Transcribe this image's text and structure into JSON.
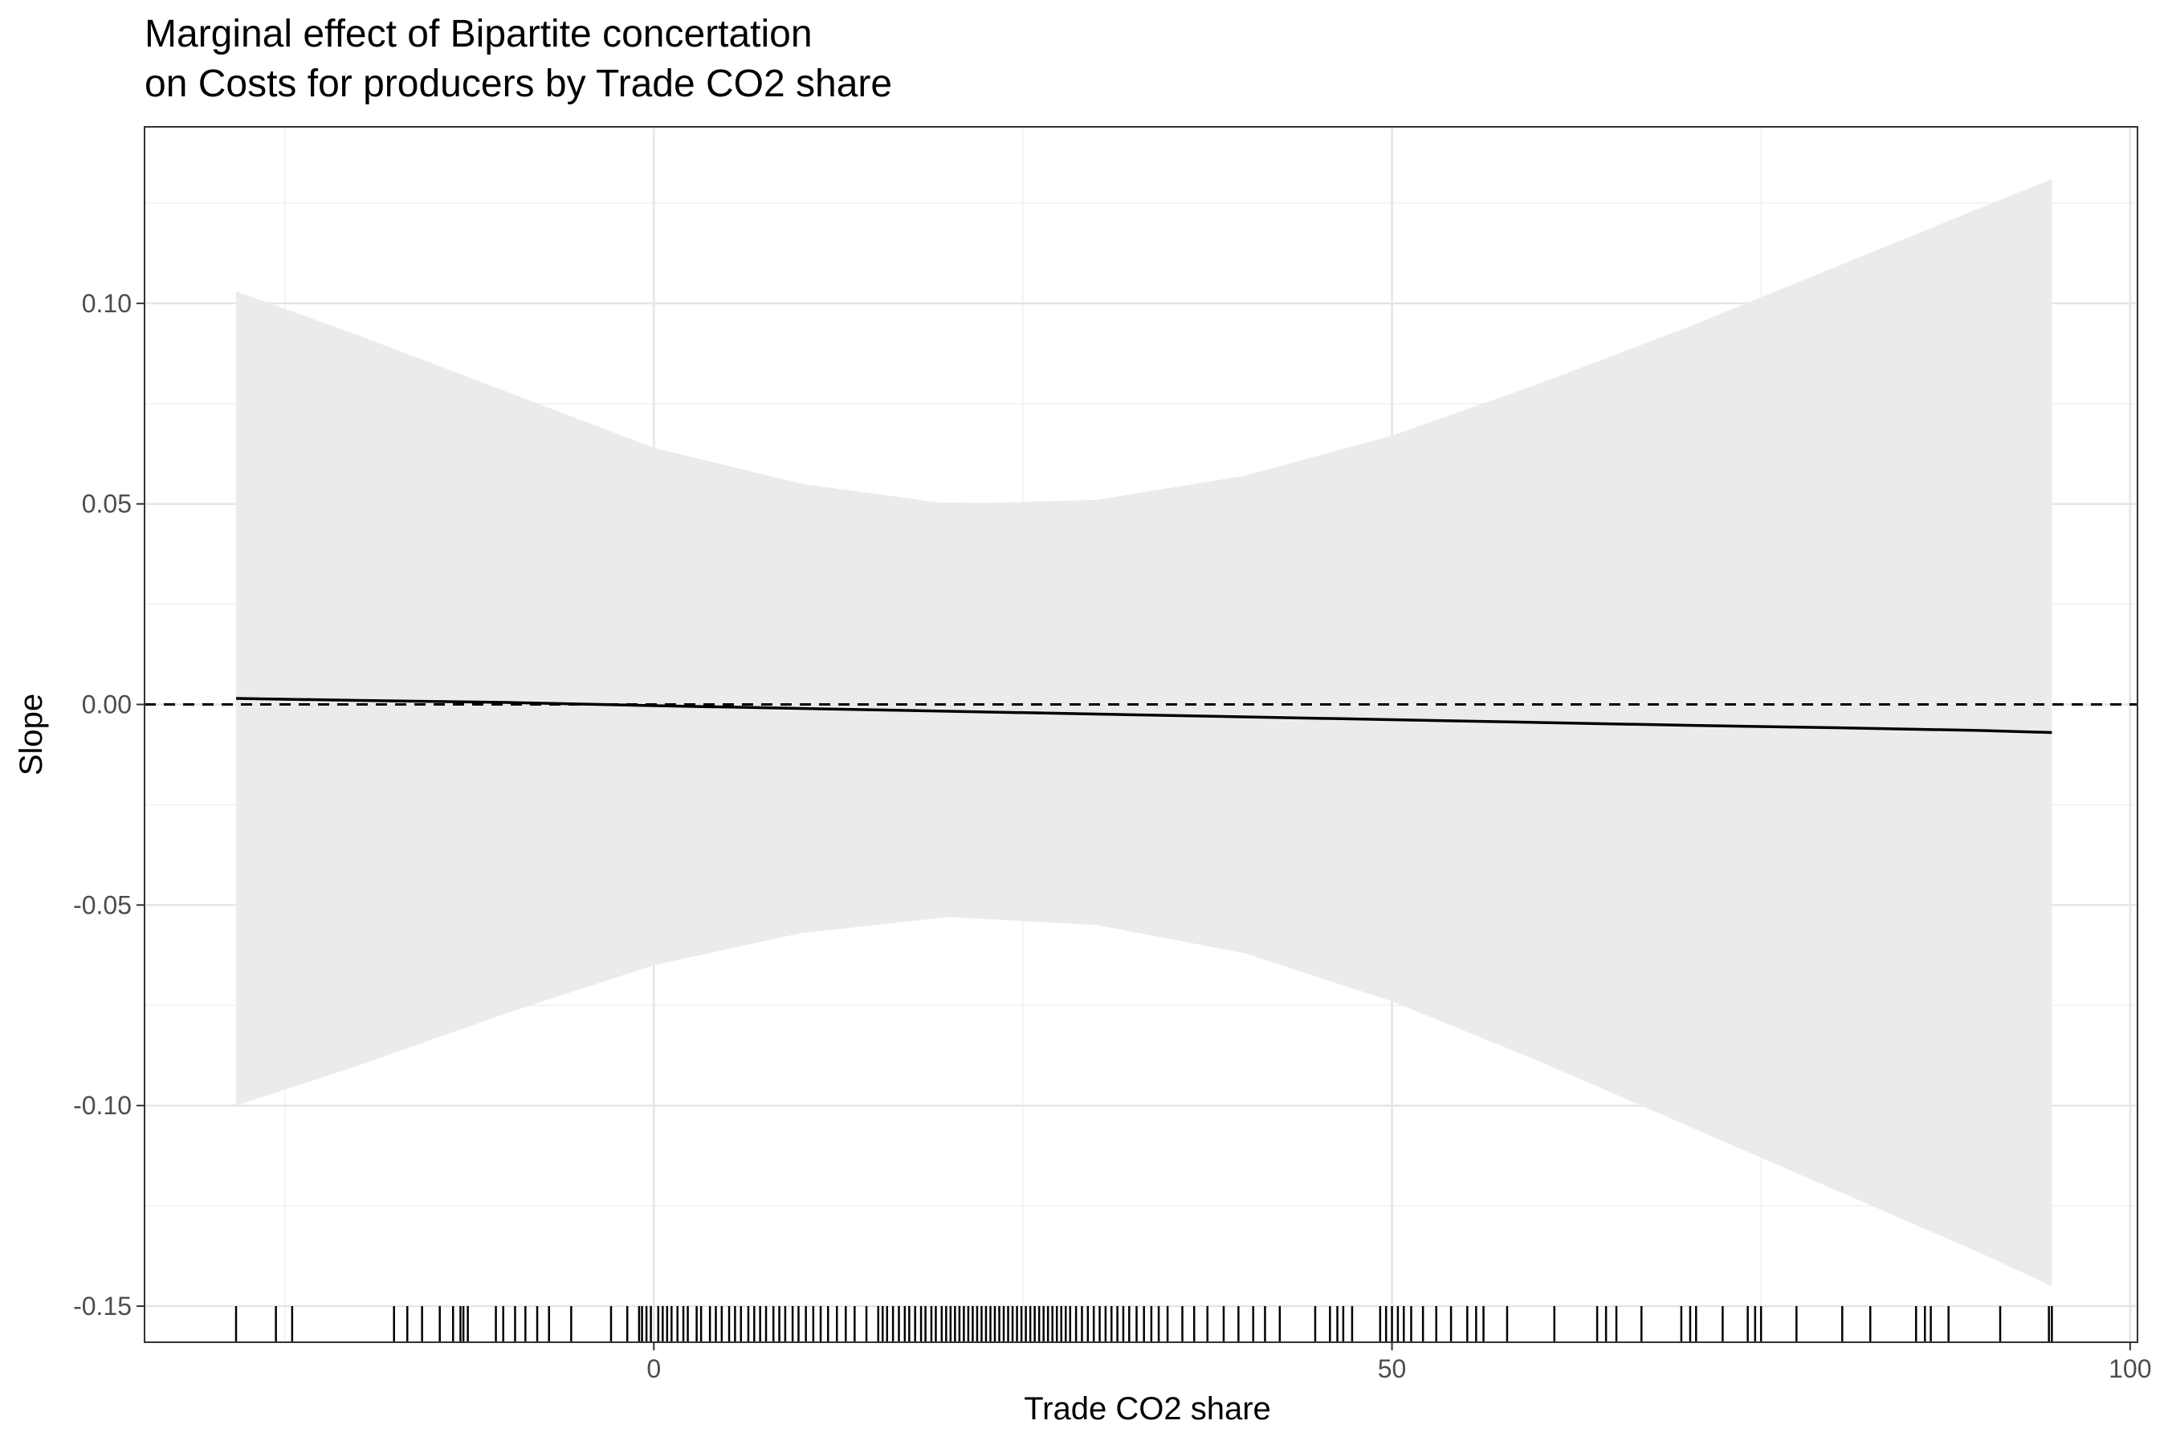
{
  "chart_data": {
    "type": "line",
    "title": [
      "Marginal effect of Bipartite concertation",
      "on Costs for producers by Trade CO2 share"
    ],
    "xlabel": "Trade CO2 share",
    "ylabel": "Slope",
    "xlim": [
      -34.5,
      100.5
    ],
    "ylim": [
      -0.159,
      0.144
    ],
    "x_ticks": [
      0,
      50,
      100
    ],
    "x_tick_labels": [
      "0",
      "50",
      "100"
    ],
    "y_ticks": [
      -0.15,
      -0.1,
      -0.05,
      0.0,
      0.05,
      0.1
    ],
    "y_tick_labels": [
      "-0.15",
      "-0.10",
      "-0.05",
      "0.00",
      "0.05",
      "0.10"
    ],
    "grid": true,
    "reference_line": {
      "y": 0,
      "style": "dashed"
    },
    "series": [
      {
        "kind": "line",
        "x": [
          -28.3,
          -20,
          -10,
          0,
          10,
          20,
          30,
          40,
          50,
          60,
          70,
          80,
          90,
          94.7
        ],
        "y": [
          0.0015,
          0.001,
          0.0005,
          -0.0003,
          -0.001,
          -0.0017,
          -0.0024,
          -0.0031,
          -0.0038,
          -0.0045,
          -0.0052,
          -0.0058,
          -0.0065,
          -0.007
        ]
      },
      {
        "kind": "ribbon",
        "x": [
          -28.3,
          -20,
          -10,
          0,
          10,
          20,
          30,
          40,
          50,
          60,
          70,
          80,
          90,
          94.7
        ],
        "lower": [
          -0.1,
          -0.09,
          -0.077,
          -0.065,
          -0.057,
          -0.053,
          -0.055,
          -0.062,
          -0.074,
          -0.089,
          -0.105,
          -0.121,
          -0.137,
          -0.145
        ],
        "upper": [
          0.103,
          0.092,
          0.078,
          0.064,
          0.055,
          0.05,
          0.051,
          0.057,
          0.067,
          0.08,
          0.094,
          0.109,
          0.124,
          0.131
        ]
      }
    ],
    "rug_x": [
      -28.3,
      -25.6,
      -24.5,
      -17.6,
      -16.7,
      -15.7,
      -14.5,
      -13.6,
      -13.1,
      -12.9,
      -12.6,
      -10.7,
      -10.2,
      -9.4,
      -8.7,
      -7.9,
      -7.1,
      -5.6,
      -2.9,
      -1.8,
      -1.0,
      -0.8,
      -0.5,
      -0.2,
      0.3,
      0.6,
      0.9,
      1.2,
      1.6,
      2.0,
      2.3,
      2.9,
      3.2,
      3.8,
      4.2,
      4.6,
      5.1,
      5.5,
      5.9,
      6.4,
      6.8,
      7.2,
      7.6,
      8.1,
      8.5,
      8.9,
      9.4,
      9.8,
      10.3,
      10.8,
      11.3,
      11.8,
      12.4,
      13.0,
      13.6,
      14.4,
      15.2,
      15.5,
      15.8,
      16.2,
      16.6,
      17.0,
      17.3,
      17.7,
      18.1,
      18.4,
      18.8,
      19.1,
      19.5,
      19.8,
      20.1,
      20.4,
      20.7,
      21.0,
      21.3,
      21.6,
      21.9,
      22.2,
      22.5,
      22.8,
      23.1,
      23.4,
      23.7,
      24.0,
      24.3,
      24.6,
      24.9,
      25.2,
      25.5,
      25.8,
      26.1,
      26.4,
      26.7,
      27.0,
      27.3,
      27.6,
      27.9,
      28.2,
      28.6,
      29.0,
      29.4,
      29.8,
      30.2,
      30.6,
      31.0,
      31.4,
      31.8,
      32.2,
      32.7,
      33.2,
      33.7,
      34.2,
      34.8,
      35.8,
      36.6,
      37.5,
      38.6,
      39.6,
      40.6,
      41.4,
      42.4,
      44.8,
      45.8,
      46.3,
      46.7,
      47.3,
      49.2,
      49.6,
      50.0,
      50.4,
      50.8,
      51.3,
      52.1,
      53.0,
      54.0,
      55.1,
      55.7,
      56.2,
      57.8,
      61.0,
      63.9,
      64.5,
      65.2,
      66.9,
      69.6,
      70.2,
      70.6,
      72.4,
      74.1,
      74.6,
      75.0,
      77.4,
      80.5,
      82.4,
      85.5,
      86.1,
      86.5,
      87.7,
      91.2,
      94.5,
      94.7
    ]
  }
}
